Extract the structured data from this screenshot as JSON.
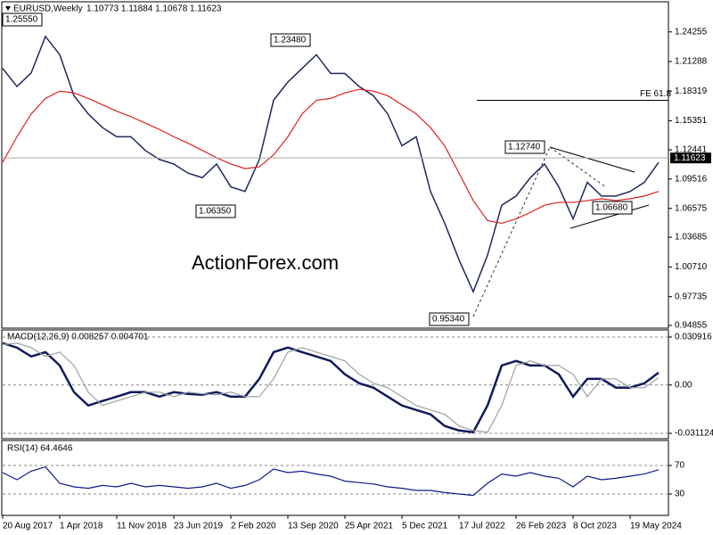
{
  "chart_data": [
    {
      "type": "line",
      "title": "EURUSD,Weekly",
      "subtitle": "1.10773 1.11884 1.10678 1.11623",
      "watermark": "ActionForex.com",
      "categories": [
        "20 Aug 2017",
        null,
        null,
        null,
        "1 Apr 2018",
        null,
        null,
        null,
        "11 Nov 2018",
        null,
        null,
        null,
        "23 Jun 2019",
        null,
        null,
        null,
        "2 Feb 2020",
        null,
        null,
        null,
        "13 Sep 2020",
        null,
        null,
        null,
        "25 Apr 2021",
        null,
        null,
        null,
        "5 Dec 2021",
        null,
        null,
        null,
        "17 Jul 2022",
        null,
        null,
        null,
        "26 Feb 2023",
        null,
        null,
        null,
        "8 Oct 2023",
        null,
        null,
        null,
        "19 May 2024",
        null,
        null
      ],
      "series": [
        {
          "color": "#1f2a5a",
          "values": [
            1.206,
            1.1878,
            1.2015,
            1.238,
            1.2197,
            1.1786,
            1.1604,
            1.1467,
            1.1375,
            1.1375,
            1.1238,
            1.1147,
            1.1102,
            1.101,
            1.0965,
            1.1102,
            1.0873,
            1.0827,
            1.1147,
            1.1741,
            1.1923,
            1.206,
            1.2197,
            1.2009,
            1.2009,
            1.1878,
            1.1786,
            1.1604,
            1.1284,
            1.1375,
            1.0827,
            1.0508,
            1.0143,
            0.9823,
            1.0188,
            1.069,
            1.0781,
            1.0965,
            1.1102,
            1.0873,
            1.0553,
            1.0919,
            1.0781,
            1.0781,
            1.0827,
            1.0919,
            1.1119
          ]
        },
        {
          "color": "#e02020",
          "values": [
            1.1119,
            1.1375,
            1.1604,
            1.1759,
            1.1832,
            1.1814,
            1.1759,
            1.1695,
            1.1631,
            1.1576,
            1.1512,
            1.1448,
            1.1375,
            1.1311,
            1.1238,
            1.1165,
            1.1102,
            1.1056,
            1.1074,
            1.1193,
            1.1375,
            1.1604,
            1.1741,
            1.1759,
            1.1814,
            1.185,
            1.1832,
            1.1786,
            1.1695,
            1.1604,
            1.1467,
            1.1284,
            1.101,
            1.0736,
            1.0535,
            1.0508,
            1.0553,
            1.0617,
            1.069,
            1.0718,
            1.0718,
            1.0736,
            1.0754,
            1.0736,
            1.0754,
            1.0781,
            1.0827
          ]
        }
      ],
      "current_price": 1.11623,
      "annotations": [
        {
          "text": "1.25550"
        },
        {
          "text": "1.23480"
        },
        {
          "text": "1.06350"
        },
        {
          "text": "1.12740"
        },
        {
          "text": "1.06680"
        },
        {
          "text": "0.95340"
        }
      ],
      "fe_level": {
        "text": "FE 61.8",
        "value": 1.174
      },
      "ylim": [
        0.9458,
        1.2727
      ],
      "yticks": [
        1.24255,
        1.21288,
        1.18319,
        1.15351,
        1.12441,
        1.09516,
        1.06575,
        1.03685,
        {
          "value": 1.0071,
          "label": "1.00710"
        },
        0.97735,
        0.94855
      ]
    },
    {
      "type": "line",
      "title": "MACD(12,26,9) 0.008257 0.004701",
      "series": [
        {
          "color": "#101a5c",
          "values": [
            0.027,
            0.0241,
            0.0184,
            0.0212,
            0.0126,
            -0.0046,
            -0.0132,
            -0.0103,
            -0.0075,
            -0.0046,
            -0.0046,
            -0.0075,
            -0.0046,
            -0.0057,
            -0.0063,
            -0.0046,
            -0.0075,
            -0.0075,
            0.004,
            0.0212,
            0.0241,
            0.0212,
            0.0184,
            0.0155,
            0.0069,
            0.0011,
            -0.0017,
            -0.0075,
            -0.0132,
            -0.0161,
            -0.0189,
            -0.0264,
            -0.0293,
            -0.0304,
            -0.0132,
            0.0126,
            0.0155,
            0.0126,
            0.0126,
            0.0069,
            -0.0075,
            0.004,
            0.004,
            -0.0017,
            -0.0017,
            0.0011,
            0.008
          ]
        },
        {
          "color": "#a0a0a0",
          "values": [
            0.026,
            0.027,
            0.0241,
            0.0184,
            0.0212,
            0.0126,
            -0.0046,
            -0.0132,
            -0.0103,
            -0.0075,
            -0.0046,
            -0.0046,
            -0.0075,
            -0.0046,
            -0.0057,
            -0.0063,
            -0.0046,
            -0.0075,
            -0.0075,
            0.004,
            0.0212,
            0.0241,
            0.0212,
            0.0184,
            0.0155,
            0.0069,
            0.0011,
            -0.0017,
            -0.0075,
            -0.0132,
            -0.0161,
            -0.0189,
            -0.0264,
            -0.0293,
            -0.0304,
            -0.0132,
            0.0126,
            0.0155,
            0.0126,
            0.0126,
            0.0069,
            -0.0075,
            0.004,
            0.004,
            -0.0017,
            -0.0017,
            0.0047
          ]
        }
      ],
      "ylim": [
        -0.0346,
        0.0355
      ],
      "yticks": [
        0.030916,
        {
          "value": 0,
          "label": "0.00"
        },
        -0.031124
      ]
    },
    {
      "type": "line",
      "title": "RSI(14) 64.4646",
      "series": [
        {
          "color": "#101a8c",
          "values": [
            60,
            50,
            62,
            68,
            45,
            40,
            38,
            42,
            40,
            45,
            40,
            42,
            40,
            38,
            40,
            45,
            38,
            42,
            50,
            65,
            60,
            62,
            58,
            55,
            48,
            46,
            44,
            40,
            38,
            35,
            35,
            32,
            30,
            28,
            45,
            58,
            55,
            60,
            55,
            52,
            40,
            55,
            50,
            52,
            55,
            58,
            64
          ]
        }
      ],
      "ylim": [
        0,
        105
      ],
      "yticks": [
        70,
        30
      ]
    }
  ]
}
